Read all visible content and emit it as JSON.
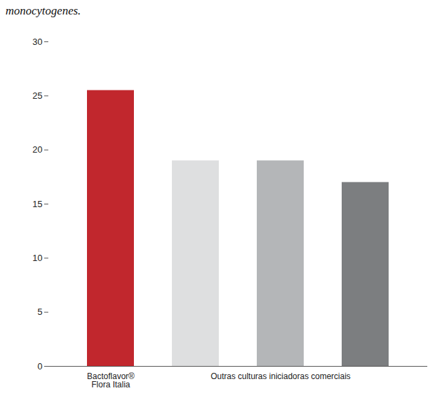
{
  "chart_data": {
    "type": "bar",
    "title": "monocytogenes.",
    "categories": [
      "Bactoflavor® Flora Italia",
      null,
      "Outras culturas iniciadoras comerciais",
      null
    ],
    "values": [
      25.5,
      19,
      19,
      17
    ],
    "colors": [
      "#c1272d",
      "#dedfe0",
      "#b4b6b8",
      "#7c7e80"
    ],
    "ylim": [
      0,
      30
    ],
    "yticks": [
      0,
      5,
      10,
      15,
      20,
      25,
      30
    ],
    "grid": false
  }
}
